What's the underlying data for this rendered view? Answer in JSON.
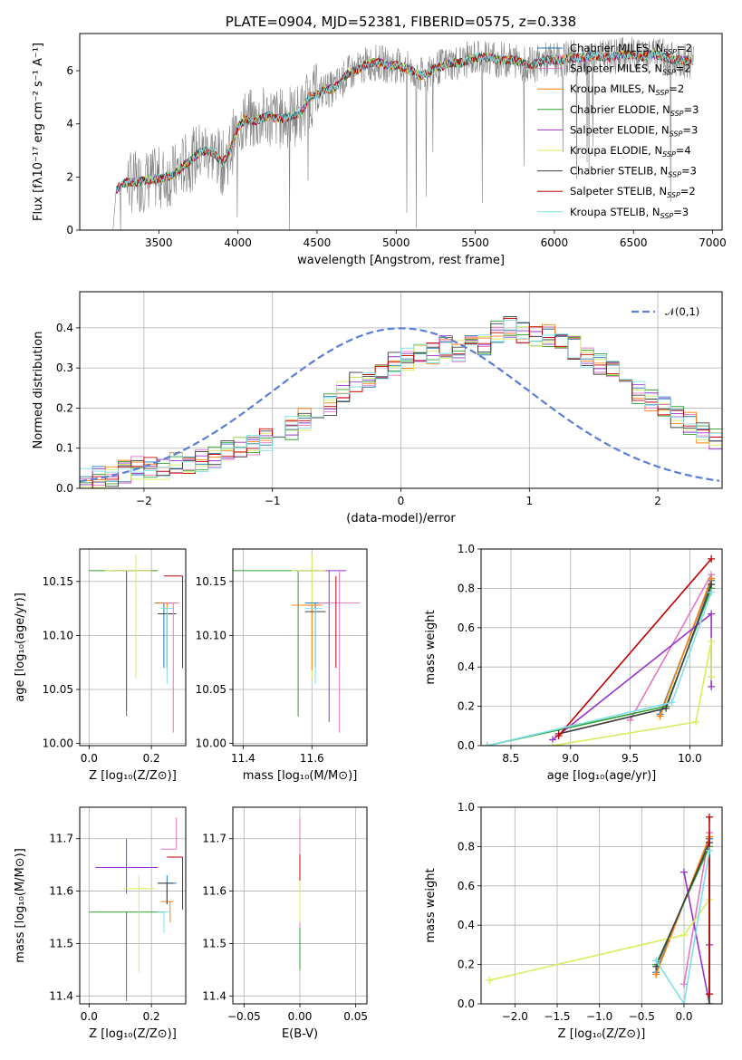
{
  "chart_data": [
    {
      "id": "spectrum",
      "type": "line",
      "title": "PLATE=0904, MJD=52381, FIBERID=0575, z=0.338",
      "xlabel": "wavelength [Angstrom, rest frame]",
      "ylabel": "Flux [fλ10⁻¹⁷ erg cm⁻² s⁻¹ A⁻¹]",
      "xlim": [
        3000,
        7060
      ],
      "ylim": [
        0,
        7.4
      ],
      "xticks": [
        3500,
        4000,
        4500,
        5000,
        5500,
        6000,
        6500,
        7000
      ],
      "yticks": [
        0,
        2,
        4,
        6
      ],
      "grid": false,
      "legend_position": "top-right",
      "data_series": {
        "name": "data",
        "color": "#808080",
        "x": [
          3210,
          3230,
          3260,
          3300,
          3350,
          3400,
          3450,
          3500,
          3550,
          3600,
          3650,
          3700,
          3750,
          3800,
          3850,
          3900,
          3950,
          4000,
          4050,
          4100,
          4150,
          4200,
          4250,
          4300,
          4350,
          4400,
          4450,
          4500,
          4550,
          4600,
          4650,
          4700,
          4750,
          4800,
          4850,
          4900,
          4950,
          5000,
          5050,
          5100,
          5150,
          5200,
          5250,
          5300,
          5350,
          5400,
          5450,
          5500,
          5550,
          5600,
          5650,
          5700,
          5750,
          5800,
          5850,
          5900,
          5950,
          6000,
          6050,
          6100,
          6150,
          6200,
          6250,
          6300,
          6350,
          6400,
          6450,
          6500,
          6550,
          6600,
          6650,
          6700,
          6750,
          6800,
          6850,
          6880
        ],
        "y": [
          0,
          1.5,
          1.7,
          1.8,
          1.8,
          1.85,
          1.9,
          1.95,
          2.0,
          2.1,
          2.4,
          2.6,
          2.9,
          3.0,
          2.9,
          2.5,
          3.0,
          3.9,
          4.2,
          4.1,
          4.2,
          4.3,
          4.2,
          4.2,
          4.3,
          4.4,
          5.0,
          5.1,
          5.3,
          5.3,
          5.6,
          5.9,
          6.0,
          6.2,
          6.3,
          6.3,
          6.2,
          6.2,
          6.1,
          6.0,
          5.8,
          5.9,
          6.1,
          6.2,
          6.3,
          6.3,
          6.4,
          6.5,
          6.5,
          6.5,
          6.4,
          6.4,
          6.4,
          6.3,
          6.2,
          6.3,
          6.4,
          6.4,
          6.4,
          6.5,
          6.5,
          6.5,
          6.6,
          6.5,
          6.5,
          6.6,
          6.6,
          6.6,
          6.5,
          6.6,
          6.6,
          6.5,
          6.4,
          6.4,
          6.4,
          6.4
        ]
      },
      "series": [
        {
          "name": "Chabrier MILES, N",
          "sub": "SSP",
          "suffix": "=2",
          "color": "#1f77b4"
        },
        {
          "name": "Salpeter MILES, N",
          "sub": "SSP",
          "suffix": "=2",
          "color": "#e377c2"
        },
        {
          "name": "Kroupa MILES, N",
          "sub": "SSP",
          "suffix": "=2",
          "color": "#ff7f0e"
        },
        {
          "name": "Chabrier ELODIE, N",
          "sub": "SSP",
          "suffix": "=3",
          "color": "#2ca02c"
        },
        {
          "name": "Salpeter ELODIE, N",
          "sub": "SSP",
          "suffix": "=3",
          "color": "#9932cc"
        },
        {
          "name": "Kroupa ELODIE, N",
          "sub": "SSP",
          "suffix": "=4",
          "color": "#d4ee5e"
        },
        {
          "name": "Chabrier STELIB, N",
          "sub": "SSP",
          "suffix": "=3",
          "color": "#404040"
        },
        {
          "name": "Salpeter STELIB, N",
          "sub": "SSP",
          "suffix": "=2",
          "color": "#c00000"
        },
        {
          "name": "Kroupa STELIB, N",
          "sub": "SSP",
          "suffix": "=3",
          "color": "#7fdfe8"
        }
      ]
    },
    {
      "id": "residuals",
      "type": "histogram",
      "xlabel": "(data-model)/error",
      "ylabel": "Normed distribution",
      "xlim": [
        -2.5,
        2.5
      ],
      "ylim": [
        0,
        0.49
      ],
      "xticks": [
        -2,
        -1,
        0,
        1,
        2
      ],
      "yticks": [
        0.0,
        0.1,
        0.2,
        0.3,
        0.4
      ],
      "grid": true,
      "legend_position": "top-right",
      "normal_curve": {
        "name": "𝒩(0,1)",
        "mean": 0,
        "sigma": 1,
        "color": "#5b7fd6"
      },
      "bin_edges_start": -2.5,
      "bin_width": 0.1,
      "values": [
        0.02,
        0.03,
        0.03,
        0.04,
        0.05,
        0.05,
        0.05,
        0.06,
        0.06,
        0.07,
        0.08,
        0.09,
        0.1,
        0.11,
        0.12,
        0.13,
        0.15,
        0.17,
        0.19,
        0.21,
        0.24,
        0.26,
        0.28,
        0.29,
        0.31,
        0.32,
        0.33,
        0.34,
        0.35,
        0.34,
        0.36,
        0.36,
        0.39,
        0.4,
        0.39,
        0.38,
        0.38,
        0.37,
        0.35,
        0.33,
        0.31,
        0.29,
        0.26,
        0.24,
        0.22,
        0.2,
        0.18,
        0.16,
        0.14,
        0.12,
        0.11,
        0.1,
        0.09,
        0.08,
        0.07,
        0.06,
        0.05,
        0.05,
        0.04,
        0.04
      ]
    },
    {
      "id": "age-vs-Z",
      "type": "scatter",
      "xlabel": "Z [log₁₀(Z/Z⊙)]",
      "ylabel": "age  [log₁₀(age/yr)]",
      "xlim": [
        -0.03,
        0.31
      ],
      "ylim": [
        9.998,
        10.18
      ],
      "xticks": [
        0.0,
        0.2
      ],
      "yticks": [
        10.0,
        10.05,
        10.1,
        10.15
      ],
      "grid": true,
      "points": [
        {
          "x": 0.12,
          "y": 10.16,
          "xerr": [
            0.12,
            0.1
          ],
          "yerr": [
            0.135,
            0.0
          ],
          "color": "#2ca02c"
        },
        {
          "x": 0.12,
          "y": 10.16,
          "xerr": [
            0.05,
            0.08
          ],
          "yerr": [
            0.13,
            0.0
          ],
          "color": "#9932cc"
        },
        {
          "x": 0.15,
          "y": 10.16,
          "xerr": [
            0.1,
            0.05
          ],
          "yerr": [
            0.1,
            0.015
          ],
          "color": "#d4ee5e"
        },
        {
          "x": 0.24,
          "y": 10.13,
          "xerr": [
            0.03,
            0.03
          ],
          "yerr": [
            0.06,
            0.0
          ],
          "color": "#1f77b4"
        },
        {
          "x": 0.25,
          "y": 10.13,
          "xerr": [
            0.04,
            0.03
          ],
          "yerr": [
            0.06,
            0.0
          ],
          "color": "#ff7f0e"
        },
        {
          "x": 0.25,
          "y": 10.12,
          "xerr": [
            0.03,
            0.03
          ],
          "yerr": [
            0.05,
            0.0
          ],
          "color": "#404040"
        },
        {
          "x": 0.25,
          "y": 10.125,
          "xerr": [
            0.02,
            0.02
          ],
          "yerr": [
            0.07,
            0.0
          ],
          "color": "#7fdfe8"
        },
        {
          "x": 0.27,
          "y": 10.13,
          "xerr": [
            0.03,
            0.02
          ],
          "yerr": [
            0.12,
            0.0
          ],
          "color": "#e377c2"
        },
        {
          "x": 0.3,
          "y": 10.155,
          "xerr": [
            0.06,
            0.0
          ],
          "yerr": [
            0.085,
            0.0
          ],
          "color": "#c00000"
        }
      ]
    },
    {
      "id": "age-vs-mass",
      "type": "scatter",
      "xlabel": "mass [log₁₀(M/M⊙)]",
      "ylabel": "",
      "xlim": [
        11.37,
        11.76
      ],
      "ylim": [
        9.998,
        10.18
      ],
      "xticks": [
        11.4,
        11.6
      ],
      "yticks": [
        10.0,
        10.05,
        10.1,
        10.15
      ],
      "grid": true,
      "points": [
        {
          "x": 11.56,
          "y": 10.16,
          "xerr": [
            0.2,
            0.06
          ],
          "yerr": [
            0.135,
            0.0
          ],
          "color": "#2ca02c"
        },
        {
          "x": 11.65,
          "y": 10.16,
          "xerr": [
            0.1,
            0.05
          ],
          "yerr": [
            0.14,
            0.0
          ],
          "color": "#9932cc"
        },
        {
          "x": 11.6,
          "y": 10.16,
          "xerr": [
            0.06,
            0.04
          ],
          "yerr": [
            0.1,
            0.015
          ],
          "color": "#d4ee5e"
        },
        {
          "x": 11.61,
          "y": 10.13,
          "xerr": [
            0.03,
            0.04
          ],
          "yerr": [
            0.06,
            0.0
          ],
          "color": "#1f77b4"
        },
        {
          "x": 11.6,
          "y": 10.128,
          "xerr": [
            0.06,
            0.03
          ],
          "yerr": [
            0.06,
            0.0
          ],
          "color": "#ff7f0e"
        },
        {
          "x": 11.61,
          "y": 10.122,
          "xerr": [
            0.03,
            0.03
          ],
          "yerr": [
            0.05,
            0.0
          ],
          "color": "#404040"
        },
        {
          "x": 11.61,
          "y": 10.125,
          "xerr": [
            0.03,
            0.02
          ],
          "yerr": [
            0.07,
            0.0
          ],
          "color": "#7fdfe8"
        },
        {
          "x": 11.68,
          "y": 10.13,
          "xerr": [
            0.06,
            0.06
          ],
          "yerr": [
            0.12,
            0.03
          ],
          "color": "#e377c2"
        },
        {
          "x": 11.67,
          "y": 10.155,
          "xerr": [
            0.0,
            0.0
          ],
          "yerr": [
            0.085,
            0.0
          ],
          "color": "#c00000"
        }
      ]
    },
    {
      "id": "mass-weight-vs-age",
      "type": "line",
      "xlabel": "age  [log₁₀(age/yr)]",
      "ylabel": "mass weight",
      "xlim": [
        8.25,
        10.27
      ],
      "ylim": [
        0,
        1.0
      ],
      "xticks": [
        8.5,
        9.0,
        9.5,
        10.0
      ],
      "yticks": [
        0.0,
        0.2,
        0.4,
        0.6,
        0.8,
        1.0
      ],
      "grid": true,
      "series": [
        {
          "color": "#1f77b4",
          "x": [
            9.75,
            10.18
          ],
          "y": [
            0.16,
            0.84
          ]
        },
        {
          "color": "#e377c2",
          "x": [
            9.5,
            10.18
          ],
          "y": [
            0.13,
            0.87
          ]
        },
        {
          "color": "#ff7f0e",
          "x": [
            9.75,
            10.18
          ],
          "y": [
            0.15,
            0.85
          ]
        },
        {
          "color": "#2ca02c",
          "x": [
            8.3,
            9.8,
            10.18
          ],
          "y": [
            0.0,
            0.2,
            0.8
          ]
        },
        {
          "color": "#9932cc",
          "x": [
            8.85,
            10.18,
            10.18
          ],
          "y": [
            0.03,
            0.67,
            0.3
          ]
        },
        {
          "color": "#d4ee5e",
          "x": [
            8.85,
            10.05,
            10.18,
            10.18
          ],
          "y": [
            0.0,
            0.12,
            0.53,
            0.35
          ]
        },
        {
          "color": "#404040",
          "x": [
            8.9,
            9.8,
            10.18
          ],
          "y": [
            0.06,
            0.19,
            0.82
          ]
        },
        {
          "color": "#c00000",
          "x": [
            8.9,
            10.18
          ],
          "y": [
            0.05,
            0.95
          ]
        },
        {
          "color": "#7fdfe8",
          "x": [
            8.3,
            9.85,
            10.18
          ],
          "y": [
            0.0,
            0.22,
            0.78
          ]
        }
      ]
    },
    {
      "id": "mass-vs-Z",
      "type": "scatter",
      "xlabel": "Z [log₁₀(Z/Z⊙)]",
      "ylabel": "mass [log₁₀(M/M⊙)]",
      "xlim": [
        -0.03,
        0.31
      ],
      "ylim": [
        11.385,
        11.76
      ],
      "xticks": [
        0.0,
        0.2
      ],
      "yticks": [
        11.4,
        11.5,
        11.6,
        11.7
      ],
      "grid": true,
      "points": [
        {
          "x": 0.12,
          "y": 11.56,
          "xerr": [
            0.12,
            0.12
          ],
          "yerr": [
            0.17,
            0.0
          ],
          "color": "#2ca02c"
        },
        {
          "x": 0.12,
          "y": 11.645,
          "xerr": [
            0.1,
            0.1
          ],
          "yerr": [
            0.05,
            0.055
          ],
          "color": "#9932cc"
        },
        {
          "x": 0.16,
          "y": 11.605,
          "xerr": [
            0.05,
            0.05
          ],
          "yerr": [
            0.16,
            0.025
          ],
          "color": "#d4ee5e"
        },
        {
          "x": 0.25,
          "y": 11.615,
          "xerr": [
            0.03,
            0.03
          ],
          "yerr": [
            0.04,
            0.015
          ],
          "color": "#1f77b4"
        },
        {
          "x": 0.26,
          "y": 11.58,
          "xerr": [
            0.03,
            0.01
          ],
          "yerr": [
            0.04,
            0.0
          ],
          "color": "#ff7f0e"
        },
        {
          "x": 0.25,
          "y": 11.615,
          "xerr": [
            0.03,
            0.02
          ],
          "yerr": [
            0.04,
            0.0
          ],
          "color": "#404040"
        },
        {
          "x": 0.24,
          "y": 11.56,
          "xerr": [
            0.02,
            0.02
          ],
          "yerr": [
            0.04,
            0.0
          ],
          "color": "#7fdfe8"
        },
        {
          "x": 0.28,
          "y": 11.68,
          "xerr": [
            0.05,
            0.0
          ],
          "yerr": [
            0.0,
            0.06
          ],
          "color": "#e377c2"
        },
        {
          "x": 0.3,
          "y": 11.665,
          "xerr": [
            0.05,
            0.0
          ],
          "yerr": [
            0.1,
            0.0
          ],
          "color": "#c00000"
        }
      ]
    },
    {
      "id": "mass-vs-ebv",
      "type": "scatter",
      "xlabel": "E(B-V)",
      "ylabel": "",
      "xlim": [
        -0.06,
        0.06
      ],
      "ylim": [
        11.385,
        11.76
      ],
      "xticks": [
        -0.05,
        0.0,
        0.05
      ],
      "yticks": [
        11.4,
        11.5,
        11.6,
        11.7
      ],
      "grid": true,
      "points": [
        {
          "x": 0.0,
          "y": 11.56,
          "xerr": [
            0.0,
            0.0
          ],
          "yerr": [
            0.11,
            0.14
          ],
          "color": "#2ca02c"
        },
        {
          "x": 0.0,
          "y": 11.64,
          "xerr": [
            0.0,
            0.0
          ],
          "yerr": [
            0.11,
            0.1
          ],
          "color": "#e377c2"
        },
        {
          "x": 0.0,
          "y": 11.6,
          "xerr": [
            0.0,
            0.0
          ],
          "yerr": [
            0.06,
            0.06
          ],
          "color": "#d4ee5e"
        },
        {
          "x": 0.0,
          "y": 11.65,
          "xerr": [
            0.0,
            0.0
          ],
          "yerr": [
            0.03,
            0.02
          ],
          "color": "#c00000"
        }
      ]
    },
    {
      "id": "mass-weight-vs-Z",
      "type": "line",
      "xlabel": "Z [log₁₀(Z/Z⊙)]",
      "ylabel": "mass weight",
      "xlim": [
        -2.4,
        0.45
      ],
      "ylim": [
        0,
        1.0
      ],
      "xticks": [
        -2.0,
        -1.5,
        -1.0,
        -0.5,
        0.0
      ],
      "yticks": [
        0.0,
        0.2,
        0.4,
        0.6,
        0.8,
        1.0
      ],
      "grid": true,
      "series": [
        {
          "color": "#1f77b4",
          "x": [
            -0.33,
            0.3
          ],
          "y": [
            0.16,
            0.84
          ]
        },
        {
          "color": "#e377c2",
          "x": [
            0.0,
            0.3,
            0.3
          ],
          "y": [
            0.1,
            0.87,
            0.05
          ]
        },
        {
          "color": "#ff7f0e",
          "x": [
            -0.33,
            0.3
          ],
          "y": [
            0.15,
            0.85
          ]
        },
        {
          "color": "#2ca02c",
          "x": [
            -0.33,
            0.3,
            0.3
          ],
          "y": [
            0.2,
            0.8,
            0.0
          ]
        },
        {
          "color": "#9932cc",
          "x": [
            0.0,
            0.3,
            0.3
          ],
          "y": [
            0.67,
            0.0,
            0.3
          ]
        },
        {
          "color": "#d4ee5e",
          "x": [
            -2.3,
            0.0,
            0.3,
            0.3
          ],
          "y": [
            0.12,
            0.35,
            0.53,
            0.0
          ]
        },
        {
          "color": "#404040",
          "x": [
            -0.33,
            0.3,
            0.3
          ],
          "y": [
            0.19,
            0.82,
            0.0
          ]
        },
        {
          "color": "#c00000",
          "x": [
            0.3,
            0.3
          ],
          "y": [
            0.05,
            0.95
          ]
        },
        {
          "color": "#7fdfe8",
          "x": [
            -0.33,
            0.0,
            0.3
          ],
          "y": [
            0.22,
            0.0,
            0.78
          ]
        }
      ]
    }
  ]
}
